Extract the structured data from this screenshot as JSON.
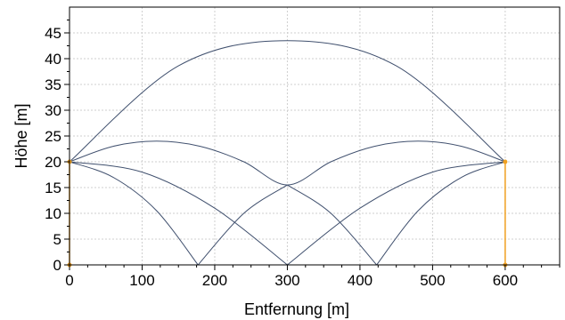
{
  "chart_data": {
    "type": "line",
    "title": "",
    "xlabel": "Entfernung [m]",
    "ylabel": "Höhe [m]",
    "xlim": [
      0,
      675
    ],
    "ylim": [
      0,
      50
    ],
    "xticks": [
      0,
      100,
      200,
      300,
      400,
      500,
      600
    ],
    "yticks": [
      0,
      5,
      10,
      15,
      20,
      25,
      30,
      35,
      40,
      45
    ],
    "grid": true,
    "colors": {
      "curve": "#40506e",
      "marker": "#f0a020",
      "grid": "#cfcfcf"
    },
    "series": [
      {
        "x": [
          0,
          150,
          300,
          450,
          600
        ],
        "y": [
          20,
          38.6,
          43.5,
          38.6,
          20
        ]
      },
      {
        "x": [
          0,
          60,
          120,
          180,
          240,
          300,
          360,
          420,
          480,
          540,
          600
        ],
        "y": [
          20,
          23,
          24,
          23,
          20,
          15.5,
          20,
          23,
          24,
          23,
          20
        ]
      },
      {
        "x": [
          0,
          60,
          120,
          177
        ],
        "y": [
          20,
          17,
          10.5,
          0
        ]
      },
      {
        "x": [
          0,
          100,
          200,
          300
        ],
        "y": [
          20,
          18,
          11,
          0
        ]
      },
      {
        "x": [
          177,
          240,
          300
        ],
        "y": [
          0,
          10,
          15.5
        ]
      },
      {
        "x": [
          300,
          360,
          423
        ],
        "y": [
          15.5,
          10,
          0
        ]
      },
      {
        "x": [
          300,
          400,
          500,
          600
        ],
        "y": [
          0,
          11,
          18,
          20
        ]
      },
      {
        "x": [
          423,
          480,
          540,
          600
        ],
        "y": [
          0,
          10.5,
          17,
          20
        ]
      }
    ],
    "markers": [
      {
        "x": 0,
        "y": 0
      },
      {
        "x": 0,
        "y": 20
      },
      {
        "x": 600,
        "y": 0
      },
      {
        "x": 600,
        "y": 20
      }
    ],
    "vlines": [
      {
        "x": 0,
        "y": [
          0,
          20
        ]
      },
      {
        "x": 600,
        "y": [
          0,
          20
        ]
      }
    ]
  }
}
